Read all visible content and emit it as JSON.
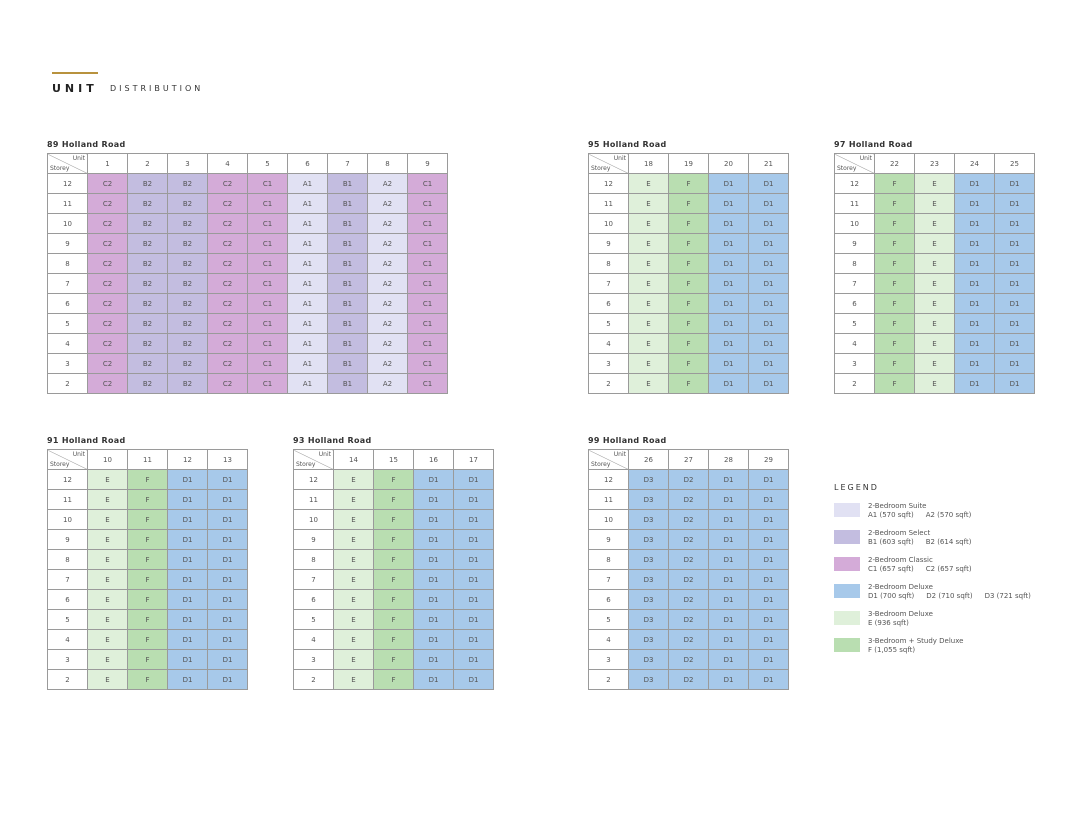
{
  "header": {
    "title_bold": "UNIT",
    "title_rest": "DISTRIBUTION"
  },
  "blocks": [
    {
      "name": "89 Holland Road",
      "unit_label": "Unit",
      "storey_label": "Storey",
      "units": [
        1,
        2,
        3,
        4,
        5,
        6,
        7,
        8,
        9
      ],
      "storeys": [
        12,
        11,
        10,
        9,
        8,
        7,
        6,
        5,
        4,
        3,
        2
      ],
      "rows": [
        [
          "C2",
          "B2",
          "B2",
          "C2",
          "C1",
          "A1",
          "B1",
          "A2",
          "C1"
        ],
        [
          "C2",
          "B2",
          "B2",
          "C2",
          "C1",
          "A1",
          "B1",
          "A2",
          "C1"
        ],
        [
          "C2",
          "B2",
          "B2",
          "C2",
          "C1",
          "A1",
          "B1",
          "A2",
          "C1"
        ],
        [
          "C2",
          "B2",
          "B2",
          "C2",
          "C1",
          "A1",
          "B1",
          "A2",
          "C1"
        ],
        [
          "C2",
          "B2",
          "B2",
          "C2",
          "C1",
          "A1",
          "B1",
          "A2",
          "C1"
        ],
        [
          "C2",
          "B2",
          "B2",
          "C2",
          "C1",
          "A1",
          "B1",
          "A2",
          "C1"
        ],
        [
          "C2",
          "B2",
          "B2",
          "C2",
          "C1",
          "A1",
          "B1",
          "A2",
          "C1"
        ],
        [
          "C2",
          "B2",
          "B2",
          "C2",
          "C1",
          "A1",
          "B1",
          "A2",
          "C1"
        ],
        [
          "C2",
          "B2",
          "B2",
          "C2",
          "C1",
          "A1",
          "B1",
          "A2",
          "C1"
        ],
        [
          "C2",
          "B2",
          "B2",
          "C2",
          "C1",
          "A1",
          "B1",
          "A2",
          "C1"
        ],
        [
          "C2",
          "B2",
          "B2",
          "C2",
          "C1",
          "A1",
          "B1",
          "A2",
          "C1"
        ]
      ]
    },
    {
      "name": "95 Holland Road",
      "unit_label": "Unit",
      "storey_label": "Storey",
      "units": [
        18,
        19,
        20,
        21
      ],
      "storeys": [
        12,
        11,
        10,
        9,
        8,
        7,
        6,
        5,
        4,
        3,
        2
      ],
      "rows": [
        [
          "E",
          "F",
          "D1",
          "D1"
        ],
        [
          "E",
          "F",
          "D1",
          "D1"
        ],
        [
          "E",
          "F",
          "D1",
          "D1"
        ],
        [
          "E",
          "F",
          "D1",
          "D1"
        ],
        [
          "E",
          "F",
          "D1",
          "D1"
        ],
        [
          "E",
          "F",
          "D1",
          "D1"
        ],
        [
          "E",
          "F",
          "D1",
          "D1"
        ],
        [
          "E",
          "F",
          "D1",
          "D1"
        ],
        [
          "E",
          "F",
          "D1",
          "D1"
        ],
        [
          "E",
          "F",
          "D1",
          "D1"
        ],
        [
          "E",
          "F",
          "D1",
          "D1"
        ]
      ]
    },
    {
      "name": "97 Holland Road",
      "unit_label": "Unit",
      "storey_label": "Storey",
      "units": [
        22,
        23,
        24,
        25
      ],
      "storeys": [
        12,
        11,
        10,
        9,
        8,
        7,
        6,
        5,
        4,
        3,
        2
      ],
      "rows": [
        [
          "F",
          "E",
          "D1",
          "D1"
        ],
        [
          "F",
          "E",
          "D1",
          "D1"
        ],
        [
          "F",
          "E",
          "D1",
          "D1"
        ],
        [
          "F",
          "E",
          "D1",
          "D1"
        ],
        [
          "F",
          "E",
          "D1",
          "D1"
        ],
        [
          "F",
          "E",
          "D1",
          "D1"
        ],
        [
          "F",
          "E",
          "D1",
          "D1"
        ],
        [
          "F",
          "E",
          "D1",
          "D1"
        ],
        [
          "F",
          "E",
          "D1",
          "D1"
        ],
        [
          "F",
          "E",
          "D1",
          "D1"
        ],
        [
          "F",
          "E",
          "D1",
          "D1"
        ]
      ]
    },
    {
      "name": "91 Holland Road",
      "unit_label": "Unit",
      "storey_label": "Storey",
      "units": [
        10,
        11,
        12,
        13
      ],
      "storeys": [
        12,
        11,
        10,
        9,
        8,
        7,
        6,
        5,
        4,
        3,
        2
      ],
      "rows": [
        [
          "E",
          "F",
          "D1",
          "D1"
        ],
        [
          "E",
          "F",
          "D1",
          "D1"
        ],
        [
          "E",
          "F",
          "D1",
          "D1"
        ],
        [
          "E",
          "F",
          "D1",
          "D1"
        ],
        [
          "E",
          "F",
          "D1",
          "D1"
        ],
        [
          "E",
          "F",
          "D1",
          "D1"
        ],
        [
          "E",
          "F",
          "D1",
          "D1"
        ],
        [
          "E",
          "F",
          "D1",
          "D1"
        ],
        [
          "E",
          "F",
          "D1",
          "D1"
        ],
        [
          "E",
          "F",
          "D1",
          "D1"
        ],
        [
          "E",
          "F",
          "D1",
          "D1"
        ]
      ]
    },
    {
      "name": "93 Holland Road",
      "unit_label": "Unit",
      "storey_label": "Storey",
      "units": [
        14,
        15,
        16,
        17
      ],
      "storeys": [
        12,
        11,
        10,
        9,
        8,
        7,
        6,
        5,
        4,
        3,
        2
      ],
      "rows": [
        [
          "E",
          "F",
          "D1",
          "D1"
        ],
        [
          "E",
          "F",
          "D1",
          "D1"
        ],
        [
          "E",
          "F",
          "D1",
          "D1"
        ],
        [
          "E",
          "F",
          "D1",
          "D1"
        ],
        [
          "E",
          "F",
          "D1",
          "D1"
        ],
        [
          "E",
          "F",
          "D1",
          "D1"
        ],
        [
          "E",
          "F",
          "D1",
          "D1"
        ],
        [
          "E",
          "F",
          "D1",
          "D1"
        ],
        [
          "E",
          "F",
          "D1",
          "D1"
        ],
        [
          "E",
          "F",
          "D1",
          "D1"
        ],
        [
          "E",
          "F",
          "D1",
          "D1"
        ]
      ]
    },
    {
      "name": "99 Holland Road",
      "unit_label": "Unit",
      "storey_label": "Storey",
      "units": [
        26,
        27,
        28,
        29
      ],
      "storeys": [
        12,
        11,
        10,
        9,
        8,
        7,
        6,
        5,
        4,
        3,
        2
      ],
      "rows": [
        [
          "D3",
          "D2",
          "D1",
          "D1"
        ],
        [
          "D3",
          "D2",
          "D1",
          "D1"
        ],
        [
          "D3",
          "D2",
          "D1",
          "D1"
        ],
        [
          "D3",
          "D2",
          "D1",
          "D1"
        ],
        [
          "D3",
          "D2",
          "D1",
          "D1"
        ],
        [
          "D3",
          "D2",
          "D1",
          "D1"
        ],
        [
          "D3",
          "D2",
          "D1",
          "D1"
        ],
        [
          "D3",
          "D2",
          "D1",
          "D1"
        ],
        [
          "D3",
          "D2",
          "D1",
          "D1"
        ],
        [
          "D3",
          "D2",
          "D1",
          "D1"
        ],
        [
          "D3",
          "D2",
          "D1",
          "D1"
        ]
      ]
    }
  ],
  "legend": {
    "title": "LEGEND",
    "items": [
      {
        "name": "2-Bedroom Suite",
        "types": [
          "A1 (570 sqft)",
          "A2 (570 sqft)"
        ],
        "color": "#e1e1f3"
      },
      {
        "name": "2-Bedroom Select",
        "types": [
          "B1 (603 sqft)",
          "B2 (614 sqft)"
        ],
        "color": "#c3bde0"
      },
      {
        "name": "2-Bedroom Classic",
        "types": [
          "C1 (657 sqft)",
          "C2 (657 sqft)"
        ],
        "color": "#d4abd8"
      },
      {
        "name": "2-Bedroom Deluxe",
        "types": [
          "D1 (700 sqft)",
          "D2 (710 sqft)",
          "D3 (721 sqft)"
        ],
        "color": "#a7c9ea"
      },
      {
        "name": "3-Bedroom Deluxe",
        "types": [
          "E (936 sqft)"
        ],
        "color": "#dff0da"
      },
      {
        "name": "3-Bedroom + Study Deluxe",
        "types": [
          "F (1,055 sqft)"
        ],
        "color": "#b9deb1"
      }
    ]
  }
}
